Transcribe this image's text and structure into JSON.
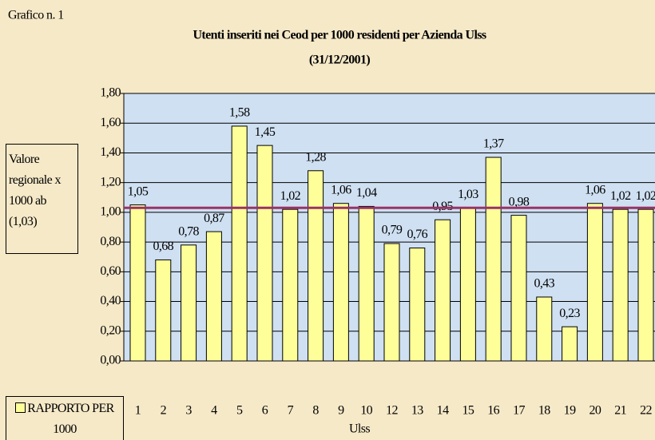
{
  "chart_data": {
    "type": "bar",
    "corner_label": "Grafico n. 1",
    "title": "Utenti inseriti nei Ceod per 1000 residenti per Azienda Ulss",
    "subtitle": "(31/12/2001)",
    "x_label": "Ulss",
    "categories": [
      "1",
      "2",
      "3",
      "4",
      "5",
      "6",
      "7",
      "8",
      "9",
      "10",
      "12",
      "13",
      "14",
      "15",
      "16",
      "17",
      "18",
      "19",
      "20",
      "21",
      "22"
    ],
    "series": [
      {
        "name": "RAPPORTO PER 1000",
        "color": "#ffff99",
        "values": [
          1.05,
          0.68,
          0.78,
          0.87,
          1.58,
          1.45,
          1.02,
          1.28,
          1.06,
          1.04,
          0.79,
          0.76,
          0.95,
          1.03,
          1.37,
          0.98,
          0.43,
          0.23,
          1.06,
          1.02,
          1.02
        ],
        "value_labels": [
          "1,05",
          "0,68",
          "0,78",
          "0,87",
          "1,58",
          "1,45",
          "1,02",
          "1,28",
          "1,06",
          "1,04",
          "0,79",
          "0,76",
          "0,95",
          "1,03",
          "1,37",
          "0,98",
          "0,43",
          "0,23",
          "1,06",
          "1,02",
          "1,02"
        ]
      }
    ],
    "reference_line": {
      "value": 1.03,
      "color": "#993366",
      "label": [
        "Valore",
        "regionale x",
        "1000 ab",
        "(1,03)"
      ]
    },
    "ylim": [
      0,
      1.8
    ],
    "yticks": [
      {
        "value": 0,
        "label": "0,00"
      },
      {
        "value": 0.2,
        "label": "0,20"
      },
      {
        "value": 0.4,
        "label": "0,40"
      },
      {
        "value": 0.6,
        "label": "0,60"
      },
      {
        "value": 0.8,
        "label": "0,80"
      },
      {
        "value": 1,
        "label": "1,00"
      },
      {
        "value": 1.2,
        "label": "1,20"
      },
      {
        "value": 1.4,
        "label": "1,40"
      },
      {
        "value": 1.6,
        "label": "1,60"
      },
      {
        "value": 1.8,
        "label": "1,80"
      }
    ],
    "grid": true,
    "legend": "bottom-left"
  }
}
